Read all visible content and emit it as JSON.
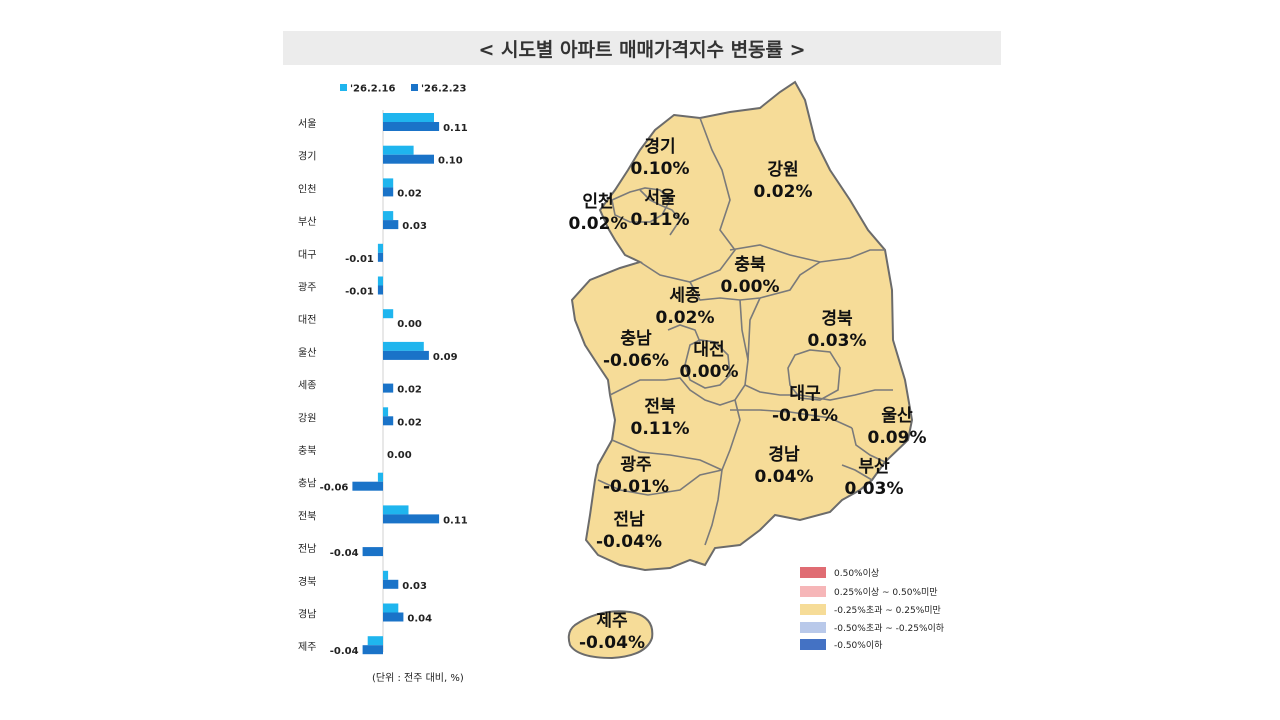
{
  "title": "< 시도별 아파트 매매가격지수 변동률 >",
  "unit_note": "(단위 : 전주 대비, %)",
  "colors": {
    "series_prev": "#1fb5ee",
    "series_curr": "#1a73c8",
    "map_fill": "#f6dc98",
    "map_stroke": "#6b6b6b"
  },
  "chart_data": {
    "type": "bar",
    "orientation": "horizontal",
    "categories": [
      "서울",
      "경기",
      "인천",
      "부산",
      "대구",
      "광주",
      "대전",
      "울산",
      "세종",
      "강원",
      "충북",
      "충남",
      "전북",
      "전남",
      "경북",
      "경남",
      "제주"
    ],
    "series": [
      {
        "name": "'26.2.16",
        "values": [
          0.1,
          0.06,
          0.02,
          0.02,
          -0.01,
          -0.01,
          0.02,
          0.08,
          0.0,
          0.01,
          0.0,
          -0.01,
          0.05,
          0.0,
          0.01,
          0.03,
          -0.03
        ]
      },
      {
        "name": "'26.2.23",
        "values": [
          0.11,
          0.1,
          0.02,
          0.03,
          -0.01,
          -0.01,
          0.0,
          0.09,
          0.02,
          0.02,
          0.0,
          -0.06,
          0.11,
          -0.04,
          0.03,
          0.04,
          -0.04
        ]
      }
    ],
    "data_labels": [
      "0.11",
      "0.10",
      "0.02",
      "0.03",
      "-0.01",
      "-0.01",
      "0.00",
      "0.09",
      "0.02",
      "0.02",
      "0.00",
      "-0.06",
      "0.11",
      "-0.04",
      "0.03",
      "0.04",
      "-0.04"
    ],
    "legend_position": "top",
    "grid": false
  },
  "map": {
    "regions": [
      {
        "name": "경기",
        "value": "0.10%"
      },
      {
        "name": "강원",
        "value": "0.02%"
      },
      {
        "name": "인천",
        "value": "0.02%"
      },
      {
        "name": "서울",
        "value": "0.11%"
      },
      {
        "name": "충북",
        "value": "0.00%"
      },
      {
        "name": "세종",
        "value": "0.02%"
      },
      {
        "name": "경북",
        "value": "0.03%"
      },
      {
        "name": "충남",
        "value": "-0.06%"
      },
      {
        "name": "대전",
        "value": "0.00%"
      },
      {
        "name": "대구",
        "value": "-0.01%"
      },
      {
        "name": "전북",
        "value": "0.11%"
      },
      {
        "name": "울산",
        "value": "0.09%"
      },
      {
        "name": "광주",
        "value": "-0.01%"
      },
      {
        "name": "경남",
        "value": "0.04%"
      },
      {
        "name": "부산",
        "value": "0.03%"
      },
      {
        "name": "전남",
        "value": "-0.04%"
      },
      {
        "name": "제주",
        "value": "-0.04%"
      }
    ],
    "legend": [
      {
        "label": "0.50%이상",
        "color": "#e06c73"
      },
      {
        "label": "0.25%이상 ~ 0.50%미만",
        "color": "#f6b6b8"
      },
      {
        "label": "-0.25%초과 ~ 0.25%미만",
        "color": "#f6dc98"
      },
      {
        "label": "-0.50%초과 ~ -0.25%이하",
        "color": "#b9c9ea"
      },
      {
        "label": "-0.50%이하",
        "color": "#4472c4"
      }
    ]
  }
}
